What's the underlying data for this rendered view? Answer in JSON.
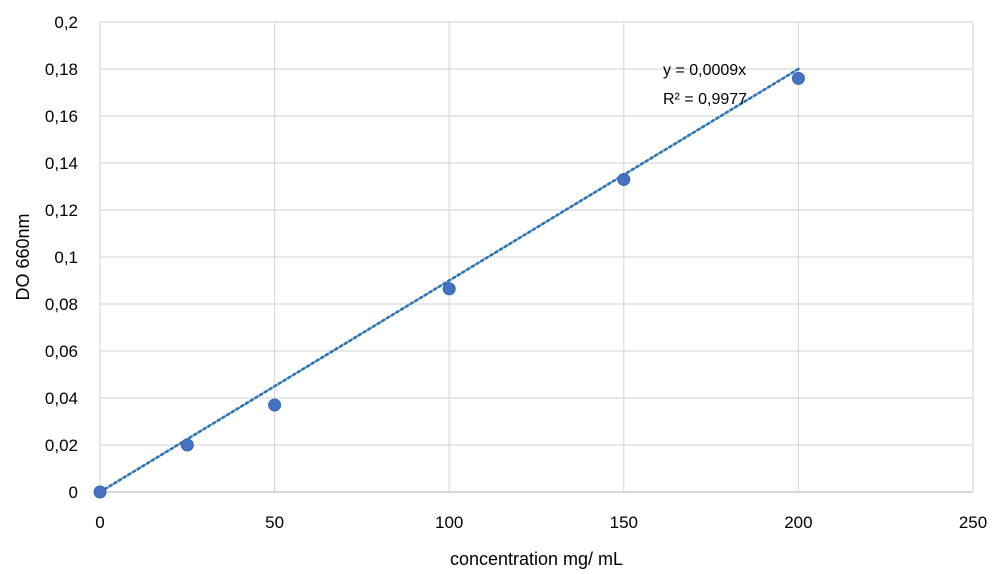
{
  "chart_data": {
    "type": "scatter",
    "title": "",
    "xlabel": "concentration mg/ mL",
    "ylabel": "DO 660nm",
    "xlim": [
      0,
      250
    ],
    "ylim": [
      0,
      0.2
    ],
    "x_ticks": [
      "0",
      "50",
      "100",
      "150",
      "200",
      "250"
    ],
    "y_ticks": [
      "0",
      "0,02",
      "0,04",
      "0,06",
      "0,08",
      "0,1",
      "0,12",
      "0,14",
      "0,16",
      "0,18",
      "0,2"
    ],
    "grid": true,
    "legend": "none",
    "series": [
      {
        "x": [
          0,
          25,
          50,
          100,
          150,
          200
        ],
        "y": [
          0,
          0.02,
          0.037,
          0.0865,
          0.133,
          0.176
        ],
        "color": "#4472C4"
      }
    ],
    "trendline": {
      "type": "linear",
      "slope": 0.0009,
      "intercept": 0,
      "x_range": [
        0,
        200
      ],
      "style": "dotted",
      "color": "#2E75B6",
      "equation_label": "y = 0,0009x",
      "r2_label": "R² = 0,9977"
    },
    "colors": {
      "grid": "#d9d9d9",
      "axis": "#bfbfbf",
      "marker": "#4472C4"
    }
  }
}
